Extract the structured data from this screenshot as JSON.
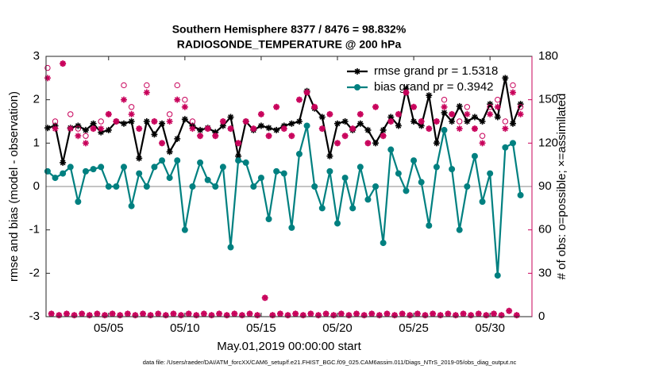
{
  "chart_data": {
    "type": "line",
    "title": "Southern Hemisphere 8377 / 8476 = 98.832%",
    "subtitle": "RADIOSONDE_TEMPERATURE @ 200 hPa",
    "xlabel": "May.01,2019 00:00:00 start",
    "ylabel": "rmse and bias (model - observation)",
    "y2label": "# of obs: o=possible; ×=assimilated",
    "footnote": "data file: /Users/raeder/DAI/ATM_forcXX/CAM6_setup/f.e21.FHIST_BGC.f09_025.CAM6assim.011/Diags_NTrS_2019-05/obs_diag_output.nc",
    "xlim": [
      0.9,
      32.75
    ],
    "xticks": [
      {
        "value": 5,
        "label": "05/05"
      },
      {
        "value": 10,
        "label": "05/10"
      },
      {
        "value": 15,
        "label": "05/15"
      },
      {
        "value": 20,
        "label": "05/20"
      },
      {
        "value": 25,
        "label": "05/25"
      },
      {
        "value": 30,
        "label": "05/30"
      }
    ],
    "ylim": [
      -3,
      3
    ],
    "yticks": [
      -3,
      -2,
      -1,
      0,
      1,
      2,
      3
    ],
    "y2lim": [
      0,
      180
    ],
    "y2ticks": [
      0,
      30,
      60,
      90,
      120,
      150,
      180
    ],
    "y2color": "#c8005a",
    "zero_line": true,
    "legend": "upper right",
    "series": [
      {
        "name": "rmse grand pr = 1.5318",
        "color": "#000000",
        "marker": "star",
        "line": true,
        "x": [
          1,
          1.5,
          2,
          2.5,
          3,
          3.5,
          4,
          4.5,
          5,
          5.5,
          6,
          6.5,
          7,
          7.5,
          8,
          8.5,
          9,
          9.5,
          10,
          10.5,
          11,
          11.5,
          12,
          12.5,
          13,
          13.5,
          14,
          14.5,
          15,
          15.5,
          16,
          16.5,
          17,
          17.5,
          18,
          18.5,
          19,
          19.5,
          20,
          20.5,
          21,
          21.5,
          22,
          22.5,
          23,
          23.5,
          24,
          24.5,
          25,
          25.5,
          26,
          26.5,
          27,
          27.5,
          28,
          28.5,
          29,
          29.5,
          30,
          30.5,
          31,
          31.5,
          32
        ],
        "values": [
          1.35,
          1.4,
          0.55,
          1.35,
          1.4,
          1.3,
          1.45,
          1.25,
          1.3,
          1.5,
          1.45,
          1.5,
          0.65,
          1.5,
          1.2,
          1.45,
          0.8,
          1.1,
          1.55,
          1.4,
          1.3,
          1.35,
          1.25,
          1.4,
          1.6,
          0.7,
          1.5,
          1.3,
          1.4,
          1.35,
          1.3,
          1.4,
          1.45,
          1.5,
          2.2,
          1.8,
          1.6,
          0.7,
          1.45,
          1.5,
          1.3,
          1.45,
          1.3,
          1.0,
          1.3,
          1.6,
          1.4,
          2.25,
          1.5,
          1.4,
          2.1,
          1.0,
          1.7,
          1.5,
          1.85,
          1.5,
          1.6,
          1.5,
          1.9,
          1.6,
          2.5,
          1.45,
          1.9
        ]
      },
      {
        "name": "bias grand pr = 0.3942",
        "color": "#008080",
        "marker": "circle-filled",
        "line": true,
        "x": [
          1,
          1.5,
          2,
          2.5,
          3,
          3.5,
          4,
          4.5,
          5,
          5.5,
          6,
          6.5,
          7,
          7.5,
          8,
          8.5,
          9,
          9.5,
          10,
          10.5,
          11,
          11.5,
          12,
          12.5,
          13,
          13.5,
          14,
          14.5,
          15,
          15.5,
          16,
          16.5,
          17,
          17.5,
          18,
          18.5,
          19,
          19.5,
          20,
          20.5,
          21,
          21.5,
          22,
          22.5,
          23,
          23.5,
          24,
          24.5,
          25,
          25.5,
          26,
          26.5,
          27,
          27.5,
          28,
          28.5,
          29,
          29.5,
          30,
          30.5,
          31,
          31.5,
          32
        ],
        "values": [
          0.35,
          0.2,
          0.3,
          0.45,
          -0.35,
          0.35,
          0.4,
          0.45,
          0.0,
          0.0,
          0.45,
          -0.45,
          0.3,
          0.0,
          0.45,
          0.6,
          0.2,
          0.6,
          -1.0,
          0.0,
          0.55,
          0.15,
          0.0,
          0.45,
          -1.4,
          0.6,
          0.55,
          0.0,
          0.2,
          -0.75,
          0.35,
          0.3,
          -0.95,
          0.75,
          1.4,
          0.0,
          -0.5,
          0.35,
          -0.85,
          0.2,
          -0.5,
          0.45,
          -0.3,
          0.0,
          -1.3,
          0.85,
          0.3,
          -0.1,
          0.6,
          0.1,
          -0.9,
          0.45,
          1.3,
          0.4,
          -1.0,
          0.0,
          0.7,
          -0.35,
          0.3,
          -2.05,
          0.9,
          1.0,
          -0.2
        ]
      },
      {
        "color": "#c8005a",
        "marker": "circle-open",
        "line": false,
        "axis": "y2",
        "x": [
          1,
          1.25,
          1.5,
          1.75,
          2,
          2.25,
          2.5,
          2.75,
          3,
          3.25,
          3.5,
          3.75,
          4,
          4.25,
          4.5,
          4.75,
          5,
          5.25,
          5.5,
          5.75,
          6,
          6.25,
          6.5,
          6.75,
          7,
          7.25,
          7.5,
          7.75,
          8,
          8.25,
          8.5,
          8.75,
          9,
          9.25,
          9.5,
          9.75,
          10,
          10.25,
          10.5,
          10.75,
          11,
          11.25,
          11.5,
          11.75,
          12,
          12.25,
          12.5,
          12.75,
          13,
          13.25,
          13.5,
          13.75,
          14,
          14.25,
          14.5,
          14.75,
          15,
          15.25,
          15.5,
          15.75,
          16,
          16.25,
          16.5,
          16.75,
          17,
          17.25,
          17.5,
          17.75,
          18,
          18.25,
          18.5,
          18.75,
          19,
          19.25,
          19.5,
          19.75,
          20,
          20.25,
          20.5,
          20.75,
          21,
          21.25,
          21.5,
          21.75,
          22,
          22.25,
          22.5,
          22.75,
          23,
          23.25,
          23.5,
          23.75,
          24,
          24.25,
          24.5,
          24.75,
          25,
          25.25,
          25.5,
          25.75,
          26,
          26.25,
          26.5,
          26.75,
          27,
          27.25,
          27.5,
          27.75,
          28,
          28.25,
          28.5,
          28.75,
          29,
          29.25,
          29.5,
          29.75,
          30,
          30.25,
          30.5,
          30.75,
          31,
          31.25,
          31.5,
          31.75,
          32
        ],
        "values": [
          172,
          2,
          135,
          1,
          175,
          2,
          140,
          1,
          130,
          2,
          125,
          1,
          130,
          2,
          135,
          1,
          140,
          2,
          135,
          1,
          160,
          2,
          145,
          1,
          130,
          2,
          160,
          1,
          135,
          2,
          120,
          1,
          140,
          2,
          160,
          1,
          150,
          2,
          135,
          1,
          125,
          2,
          130,
          1,
          125,
          2,
          135,
          1,
          130,
          2,
          120,
          1,
          135,
          2,
          130,
          1,
          140,
          13,
          125,
          1,
          145,
          2,
          130,
          1,
          125,
          2,
          150,
          1,
          155,
          2,
          145,
          1,
          130,
          2,
          140,
          1,
          120,
          2,
          125,
          1,
          130,
          2,
          140,
          1,
          120,
          2,
          145,
          1,
          125,
          2,
          135,
          1,
          140,
          2,
          155,
          1,
          145,
          2,
          135,
          1,
          130,
          2,
          135,
          1,
          150,
          2,
          140,
          1,
          135,
          2,
          145,
          1,
          130,
          2,
          125,
          1,
          145,
          2,
          150,
          1,
          135,
          4,
          160,
          1,
          145
        ]
      },
      {
        "color": "#c8005a",
        "marker": "star",
        "line": false,
        "axis": "y2",
        "x": [
          1,
          1.25,
          1.5,
          1.75,
          2,
          2.25,
          2.5,
          2.75,
          3,
          3.25,
          3.5,
          3.75,
          4,
          4.25,
          4.5,
          4.75,
          5,
          5.25,
          5.5,
          5.75,
          6,
          6.25,
          6.5,
          6.75,
          7,
          7.25,
          7.5,
          7.75,
          8,
          8.25,
          8.5,
          8.75,
          9,
          9.25,
          9.5,
          9.75,
          10,
          10.25,
          10.5,
          10.75,
          11,
          11.25,
          11.5,
          11.75,
          12,
          12.25,
          12.5,
          12.75,
          13,
          13.25,
          13.5,
          13.75,
          14,
          14.25,
          14.5,
          14.75,
          15,
          15.25,
          15.5,
          15.75,
          16,
          16.25,
          16.5,
          16.75,
          17,
          17.25,
          17.5,
          17.75,
          18,
          18.25,
          18.5,
          18.75,
          19,
          19.25,
          19.5,
          19.75,
          20,
          20.25,
          20.5,
          20.75,
          21,
          21.25,
          21.5,
          21.75,
          22,
          22.25,
          22.5,
          22.75,
          23,
          23.25,
          23.5,
          23.75,
          24,
          24.25,
          24.5,
          24.75,
          25,
          25.25,
          25.5,
          25.75,
          26,
          26.25,
          26.5,
          26.75,
          27,
          27.25,
          27.5,
          27.75,
          28,
          28.25,
          28.5,
          28.75,
          29,
          29.25,
          29.5,
          29.75,
          30,
          30.25,
          30.5,
          30.75,
          31,
          31.25,
          31.5,
          31.75,
          32
        ],
        "values": [
          165,
          2,
          130,
          1,
          175,
          2,
          130,
          1,
          125,
          2,
          120,
          1,
          130,
          2,
          130,
          1,
          140,
          2,
          135,
          1,
          150,
          2,
          140,
          1,
          130,
          2,
          155,
          1,
          135,
          2,
          120,
          1,
          135,
          2,
          150,
          1,
          145,
          2,
          130,
          1,
          125,
          2,
          130,
          1,
          125,
          2,
          135,
          1,
          130,
          2,
          120,
          1,
          135,
          2,
          130,
          1,
          140,
          13,
          125,
          1,
          145,
          2,
          130,
          1,
          125,
          2,
          150,
          1,
          155,
          2,
          145,
          1,
          130,
          2,
          140,
          1,
          120,
          2,
          125,
          1,
          130,
          2,
          140,
          1,
          120,
          2,
          145,
          1,
          125,
          2,
          135,
          1,
          140,
          2,
          155,
          1,
          145,
          2,
          135,
          1,
          130,
          2,
          135,
          1,
          145,
          2,
          140,
          1,
          130,
          2,
          140,
          1,
          130,
          2,
          120,
          1,
          140,
          2,
          145,
          1,
          130,
          4,
          155,
          1,
          140
        ]
      }
    ]
  }
}
